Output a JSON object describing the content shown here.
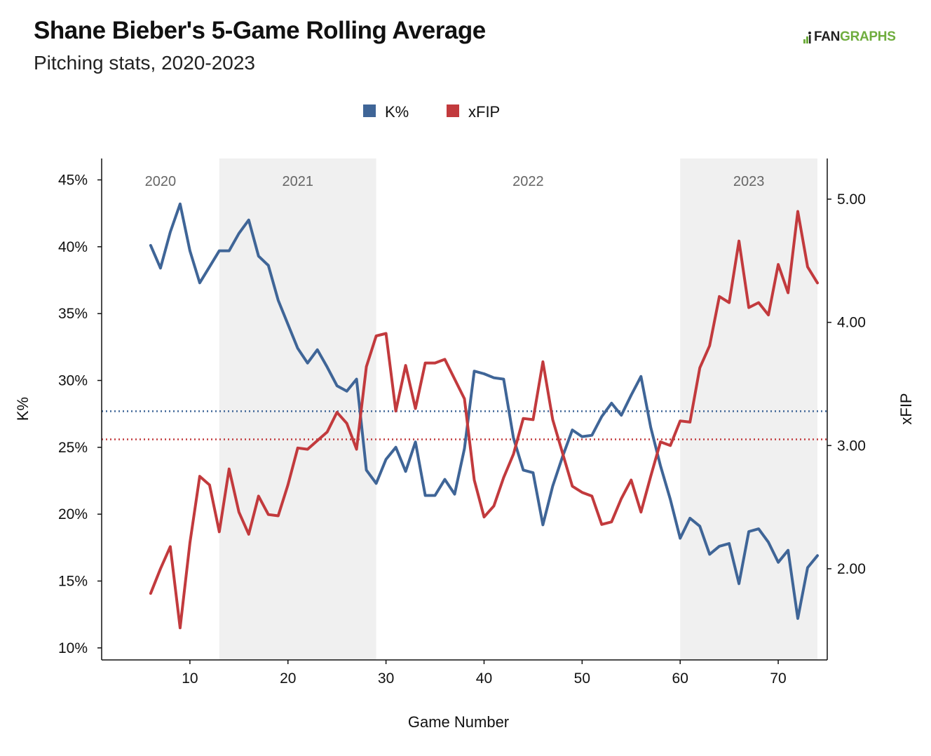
{
  "header": {
    "title": "Shane Bieber's 5-Game Rolling Average",
    "subtitle": "Pitching stats, 2020-2023",
    "logo_text_a": "FAN",
    "logo_text_b": "GRAPHS"
  },
  "chart_data": {
    "type": "line",
    "xlabel": "Game Number",
    "ylabel_left": "K%",
    "ylabel_right": "xFIP",
    "x_ticks": [
      10,
      20,
      30,
      40,
      50,
      60,
      70
    ],
    "y_left_ticks": [
      "45%",
      "40%",
      "35%",
      "30%",
      "25%",
      "20%",
      "15%",
      "10%"
    ],
    "y_left_tick_values": [
      45,
      40,
      35,
      30,
      25,
      20,
      15,
      10
    ],
    "y_right_ticks": [
      "5.00",
      "4.00",
      "3.00",
      "2.00"
    ],
    "y_right_tick_values": [
      5,
      4,
      3,
      2
    ],
    "xlim": [
      1.0,
      75.0
    ],
    "ylim_left": [
      9.1,
      46.6
    ],
    "ylim_right": [
      1.26,
      5.33
    ],
    "grid": false,
    "legend_placement": "top-center",
    "season_bands": [
      {
        "label": "2020",
        "from": 1.0,
        "to": 13.0,
        "shaded": false
      },
      {
        "label": "2021",
        "from": 13.0,
        "to": 29.0,
        "shaded": true
      },
      {
        "label": "2022",
        "from": 29.0,
        "to": 60.0,
        "shaded": false
      },
      {
        "label": "2023",
        "from": 60.0,
        "to": 74.0,
        "shaded": true
      }
    ],
    "reference_lines": [
      {
        "series": "K%",
        "axis": "left",
        "value": 27.7
      },
      {
        "series": "xFIP",
        "axis": "right",
        "value": 3.05
      }
    ],
    "x": [
      6,
      7,
      8,
      9,
      10,
      11,
      12,
      13,
      14,
      15,
      16,
      17,
      18,
      19,
      20,
      21,
      22,
      23,
      24,
      25,
      26,
      27,
      28,
      29,
      30,
      31,
      32,
      33,
      34,
      35,
      36,
      37,
      38,
      39,
      40,
      41,
      42,
      43,
      44,
      45,
      46,
      47,
      48,
      49,
      50,
      51,
      52,
      53,
      54,
      55,
      56,
      57,
      58,
      59,
      60,
      61,
      62,
      63,
      64,
      65,
      66,
      67,
      68,
      69,
      70,
      71,
      72,
      73,
      74
    ],
    "series": [
      {
        "name": "K%",
        "axis": "left",
        "color": "#3f6597",
        "values": [
          40.1,
          38.4,
          41.1,
          43.2,
          39.7,
          37.3,
          38.5,
          39.7,
          39.7,
          41.0,
          42.0,
          39.3,
          38.6,
          36.0,
          34.2,
          32.4,
          31.3,
          32.3,
          31.0,
          29.6,
          29.2,
          30.1,
          23.3,
          22.3,
          24.1,
          25.0,
          23.2,
          25.4,
          21.4,
          21.4,
          22.6,
          21.5,
          24.9,
          30.7,
          30.5,
          30.2,
          30.1,
          25.7,
          23.3,
          23.1,
          19.2,
          22.1,
          24.3,
          26.3,
          25.8,
          25.9,
          27.3,
          28.3,
          27.4,
          28.9,
          30.3,
          26.5,
          23.6,
          21.1,
          18.2,
          19.7,
          19.1,
          17.0,
          17.6,
          17.8,
          14.8,
          18.7,
          18.9,
          17.9,
          16.4,
          17.3,
          12.2,
          16.0,
          16.9
        ]
      },
      {
        "name": "xFIP",
        "axis": "right",
        "color": "#c23a3d",
        "values": [
          1.8,
          2.0,
          2.18,
          1.52,
          2.21,
          2.75,
          2.68,
          2.3,
          2.81,
          2.46,
          2.28,
          2.59,
          2.44,
          2.43,
          2.68,
          2.98,
          2.97,
          3.04,
          3.11,
          3.27,
          3.18,
          2.97,
          3.64,
          3.89,
          3.91,
          3.28,
          3.65,
          3.3,
          3.67,
          3.67,
          3.7,
          3.54,
          3.38,
          2.72,
          2.42,
          2.51,
          2.74,
          2.93,
          3.22,
          3.21,
          3.68,
          3.21,
          2.94,
          2.67,
          2.62,
          2.59,
          2.36,
          2.38,
          2.57,
          2.72,
          2.46,
          2.75,
          3.03,
          3.0,
          3.2,
          3.19,
          3.63,
          3.81,
          4.21,
          4.16,
          4.66,
          4.12,
          4.16,
          4.06,
          4.47,
          4.24,
          4.9,
          4.45,
          4.32
        ]
      }
    ]
  }
}
